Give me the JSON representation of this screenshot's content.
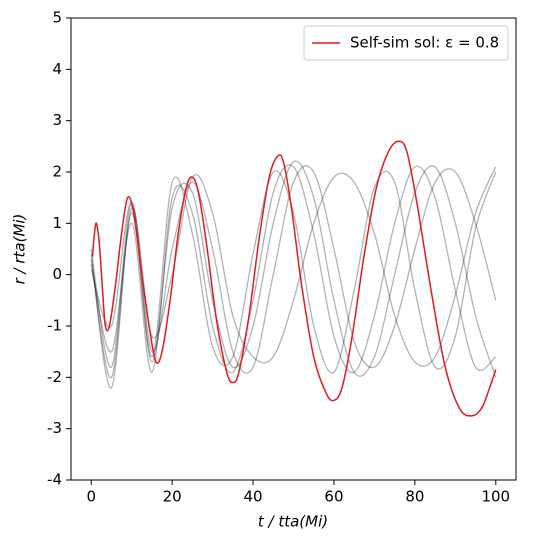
{
  "chart_data": {
    "type": "line",
    "xlabel": "t / tta(Mi)",
    "ylabel": "r / rta(Mi)",
    "xlim": [
      -5,
      105
    ],
    "ylim": [
      -4,
      5
    ],
    "xticks": [
      0,
      20,
      40,
      60,
      80,
      100
    ],
    "yticks": [
      -4,
      -3,
      -2,
      -1,
      0,
      1,
      2,
      3,
      4,
      5
    ],
    "legend": "upper right",
    "x": [
      0,
      5,
      10,
      15,
      20,
      25,
      30,
      35,
      40,
      45,
      50,
      55,
      60,
      65,
      70,
      75,
      80,
      85,
      90,
      95,
      100
    ],
    "series": [
      {
        "color": "#000000",
        "alpha": 0.3,
        "values": [
          0.5,
          -1.8,
          1.4,
          -1.5,
          0.5,
          1.8,
          0.5,
          -1.5,
          -1.8,
          0,
          1.8,
          2.0,
          0.5,
          -1.3,
          -1.8,
          -1.0,
          0.5,
          1.8,
          2.0,
          1.0,
          -0.5
        ]
      },
      {
        "color": "#000000",
        "alpha": 0.3,
        "values": [
          0.3,
          -2.0,
          1.2,
          -1.7,
          1.3,
          1.6,
          -0.5,
          -1.8,
          -1.0,
          1.0,
          2.2,
          1.5,
          -0.5,
          -1.9,
          -1.6,
          0,
          1.6,
          2.1,
          1.0,
          -0.8,
          -2.0
        ]
      },
      {
        "color": "#000000",
        "alpha": 0.3,
        "values": [
          0.2,
          -1.5,
          1.0,
          -1.9,
          1.5,
          1.2,
          -1.0,
          -1.9,
          -0.5,
          1.6,
          2.1,
          0.8,
          -1.2,
          -1.9,
          -0.8,
          1.0,
          2.1,
          1.5,
          -0.3,
          -1.8,
          -1.6
        ]
      },
      {
        "color": "#000000",
        "alpha": 0.3,
        "values": [
          0.4,
          -2.2,
          1.3,
          -1.2,
          0.0,
          1.9,
          1.2,
          -0.8,
          -1.6,
          -1.6,
          -0.5,
          1.0,
          1.9,
          1.8,
          0.8,
          -0.8,
          -1.7,
          -1.6,
          -0.4,
          1.2,
          2.1
        ]
      },
      {
        "color": "#000000",
        "alpha": 0.3,
        "values": [
          0.1,
          -1.0,
          1.4,
          -1.6,
          1.8,
          0.8,
          -1.4,
          -1.6,
          0.4,
          2.0,
          1.2,
          -1.0,
          -1.9,
          -0.3,
          1.7,
          1.8,
          -0.3,
          -1.8,
          -1.2,
          0.9,
          2.0
        ]
      },
      {
        "name": "Self-sim sol: ε = 0.8",
        "color": "#e31a1c",
        "alpha": 1,
        "x": [
          0.3,
          0.8,
          1.3,
          2,
          2.8,
          3.5,
          4.5,
          6,
          7.5,
          9,
          10.5,
          12.5,
          14.5,
          16,
          17.5,
          19.5,
          21.5,
          23.5,
          25,
          26.5,
          28.5,
          31,
          33.5,
          35,
          36.5,
          39,
          41.5,
          44,
          46,
          47.5,
          49.5,
          52,
          55,
          58,
          60,
          62,
          64.5,
          67.5,
          70.5,
          73.5,
          76,
          78,
          80.5,
          84,
          87.5,
          91,
          94,
          96.5,
          98.5,
          100
        ],
        "values": [
          0.35,
          0.8,
          1.0,
          0.6,
          -0.3,
          -1.0,
          -1.0,
          -0.2,
          0.8,
          1.5,
          1.2,
          0.0,
          -1.1,
          -1.7,
          -1.5,
          -0.5,
          0.8,
          1.7,
          1.9,
          1.6,
          0.6,
          -0.9,
          -1.9,
          -2.1,
          -1.9,
          -0.8,
          0.7,
          1.9,
          2.3,
          2.2,
          1.3,
          -0.2,
          -1.6,
          -2.3,
          -2.45,
          -2.2,
          -1.2,
          0.4,
          1.7,
          2.4,
          2.6,
          2.4,
          1.4,
          -0.3,
          -1.8,
          -2.6,
          -2.75,
          -2.6,
          -2.2,
          -1.85
        ]
      }
    ]
  }
}
